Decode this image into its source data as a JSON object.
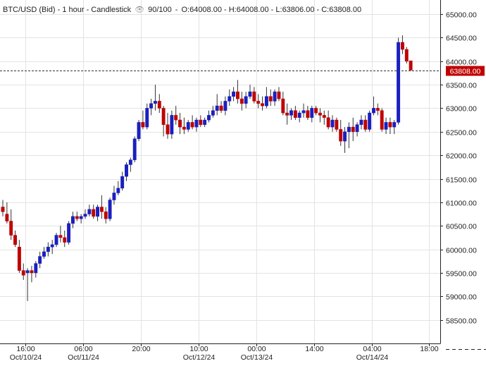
{
  "header": {
    "symbol_line": "BTC/USD (Bid) - 1 hour - Candlestick",
    "visibility_icon": "eye-icon",
    "ratio": "90/100",
    "ohlc": "O:64008.00 - H:64008.00 - L:63806.00 - C:63808.00"
  },
  "price_tag": {
    "label": "63808.00",
    "value": 63808,
    "color": "#c00000"
  },
  "colors": {
    "up": "#1a1fbf",
    "down": "#c00000",
    "grid": "#e3e3e3",
    "axis": "#222222"
  },
  "chart_data": {
    "type": "candlestick",
    "title": "BTC/USD (Bid) - 1 hour - Candlestick",
    "ylim": [
      58000,
      65300
    ],
    "y_ticks": [
      58500,
      59000,
      59500,
      60000,
      60500,
      61000,
      61500,
      62000,
      62500,
      63000,
      63500,
      64000,
      64500,
      65000
    ],
    "y_tick_labels": [
      "58500.00",
      "59000.00",
      "59500.00",
      "60000.00",
      "60500.00",
      "61000.00",
      "61500.00",
      "62000.00",
      "62500.00",
      "63000.00",
      "63500.00",
      "64000.00",
      "64500.00",
      "65000.00"
    ],
    "x_ticks": [
      {
        "index": 5.5,
        "time": "16:00",
        "date": "Oct/10/24"
      },
      {
        "index": 19.5,
        "time": "06:00",
        "date": "Oct/11/24"
      },
      {
        "index": 33.5,
        "time": "20:00",
        "date": ""
      },
      {
        "index": 47.5,
        "time": "10:00",
        "date": "Oct/12/24"
      },
      {
        "index": 61.5,
        "time": "00:00",
        "date": "Oct/13/24"
      },
      {
        "index": 75.5,
        "time": "14:00",
        "date": ""
      },
      {
        "index": 89.5,
        "time": "04:00",
        "date": "Oct/14/24"
      },
      {
        "index": 103.5,
        "time": "18:00",
        "date": ""
      }
    ],
    "candles": [
      [
        60900,
        61050,
        60700,
        60800
      ],
      [
        60750,
        61000,
        60550,
        60600
      ],
      [
        60600,
        60850,
        60200,
        60300
      ],
      [
        60300,
        60400,
        60050,
        60100
      ],
      [
        60050,
        60200,
        59500,
        59550
      ],
      [
        59550,
        59700,
        59350,
        59450
      ],
      [
        59500,
        59600,
        58900,
        59550
      ],
      [
        59550,
        59650,
        59300,
        59500
      ],
      [
        59500,
        59750,
        59400,
        59700
      ],
      [
        59700,
        59950,
        59600,
        59850
      ],
      [
        59850,
        60050,
        59800,
        59950
      ],
      [
        59950,
        60150,
        59850,
        60050
      ],
      [
        60050,
        60200,
        59900,
        60100
      ],
      [
        60100,
        60350,
        60050,
        60300
      ],
      [
        60300,
        60500,
        60150,
        60250
      ],
      [
        60250,
        60400,
        60050,
        60150
      ],
      [
        60150,
        60600,
        60100,
        60550
      ],
      [
        60550,
        60800,
        60450,
        60700
      ],
      [
        60700,
        60800,
        60600,
        60650
      ],
      [
        60650,
        60750,
        60550,
        60700
      ],
      [
        60700,
        60850,
        60650,
        60750
      ],
      [
        60750,
        60950,
        60700,
        60850
      ],
      [
        60850,
        60950,
        60650,
        60700
      ],
      [
        60700,
        60950,
        60600,
        60900
      ],
      [
        60900,
        61150,
        60650,
        60800
      ],
      [
        60800,
        60900,
        60550,
        60650
      ],
      [
        60650,
        61100,
        60600,
        61050
      ],
      [
        61050,
        61350,
        60950,
        61200
      ],
      [
        61200,
        61450,
        61150,
        61300
      ],
      [
        61300,
        61650,
        61250,
        61550
      ],
      [
        61550,
        61850,
        61450,
        61800
      ],
      [
        61800,
        61950,
        61650,
        61900
      ],
      [
        61900,
        62400,
        61850,
        62350
      ],
      [
        62350,
        62750,
        62300,
        62700
      ],
      [
        62700,
        62950,
        62550,
        62600
      ],
      [
        62600,
        63100,
        62550,
        63000
      ],
      [
        63000,
        63200,
        62850,
        63100
      ],
      [
        63100,
        63500,
        62950,
        63150
      ],
      [
        63150,
        63300,
        62900,
        63000
      ],
      [
        63000,
        63050,
        62400,
        62650
      ],
      [
        62650,
        62900,
        62350,
        62450
      ],
      [
        62450,
        62950,
        62350,
        62850
      ],
      [
        62850,
        63050,
        62650,
        62750
      ],
      [
        62750,
        62900,
        62450,
        62600
      ],
      [
        62600,
        62800,
        62450,
        62550
      ],
      [
        62550,
        62750,
        62500,
        62700
      ],
      [
        62700,
        62850,
        62550,
        62600
      ],
      [
        62600,
        62800,
        62500,
        62750
      ],
      [
        62750,
        62850,
        62600,
        62650
      ],
      [
        62650,
        62800,
        62600,
        62750
      ],
      [
        62750,
        62950,
        62700,
        62850
      ],
      [
        62850,
        63050,
        62800,
        62950
      ],
      [
        62950,
        63300,
        62850,
        63050
      ],
      [
        63050,
        63150,
        62900,
        62950
      ],
      [
        62950,
        63250,
        62850,
        63150
      ],
      [
        63150,
        63400,
        63050,
        63250
      ],
      [
        63250,
        63450,
        63150,
        63350
      ],
      [
        63350,
        63600,
        63100,
        63200
      ],
      [
        63200,
        63350,
        62950,
        63100
      ],
      [
        63100,
        63350,
        63000,
        63250
      ],
      [
        63250,
        63500,
        63200,
        63350
      ],
      [
        63350,
        63450,
        63100,
        63150
      ],
      [
        63150,
        63300,
        63000,
        63100
      ],
      [
        63100,
        63250,
        62950,
        63050
      ],
      [
        63050,
        63450,
        63000,
        63250
      ],
      [
        63250,
        63400,
        63050,
        63150
      ],
      [
        63150,
        63400,
        63050,
        63350
      ],
      [
        63350,
        63450,
        63150,
        63200
      ],
      [
        63200,
        63350,
        62850,
        62900
      ],
      [
        62900,
        63100,
        62650,
        62850
      ],
      [
        62850,
        63000,
        62750,
        62950
      ],
      [
        62950,
        63050,
        62750,
        62800
      ],
      [
        62800,
        62950,
        62700,
        62900
      ],
      [
        62900,
        63100,
        62800,
        62950
      ],
      [
        62950,
        63050,
        62750,
        62800
      ],
      [
        62800,
        63050,
        62700,
        63000
      ],
      [
        63000,
        63050,
        62850,
        62900
      ],
      [
        62900,
        63000,
        62700,
        62850
      ],
      [
        62850,
        62950,
        62650,
        62800
      ],
      [
        62800,
        62950,
        62550,
        62600
      ],
      [
        62600,
        62850,
        62500,
        62750
      ],
      [
        62750,
        62800,
        62500,
        62550
      ],
      [
        62550,
        62750,
        62200,
        62300
      ],
      [
        62300,
        62600,
        62050,
        62500
      ],
      [
        62500,
        62700,
        62150,
        62600
      ],
      [
        62600,
        62800,
        62300,
        62500
      ],
      [
        62500,
        62700,
        62400,
        62650
      ],
      [
        62650,
        62850,
        62550,
        62750
      ],
      [
        62750,
        62850,
        62500,
        62550
      ],
      [
        62550,
        62950,
        62500,
        62900
      ],
      [
        62900,
        63250,
        62850,
        63000
      ],
      [
        63000,
        63100,
        62850,
        62950
      ],
      [
        62950,
        63000,
        62500,
        62550
      ],
      [
        62550,
        62800,
        62450,
        62700
      ],
      [
        62700,
        62800,
        62450,
        62600
      ],
      [
        62600,
        62750,
        62450,
        62700
      ],
      [
        62700,
        64500,
        62650,
        64400
      ],
      [
        64400,
        64550,
        64150,
        64250
      ],
      [
        64250,
        64300,
        63950,
        64000
      ],
      [
        64008,
        64008,
        63806,
        63808
      ]
    ]
  }
}
